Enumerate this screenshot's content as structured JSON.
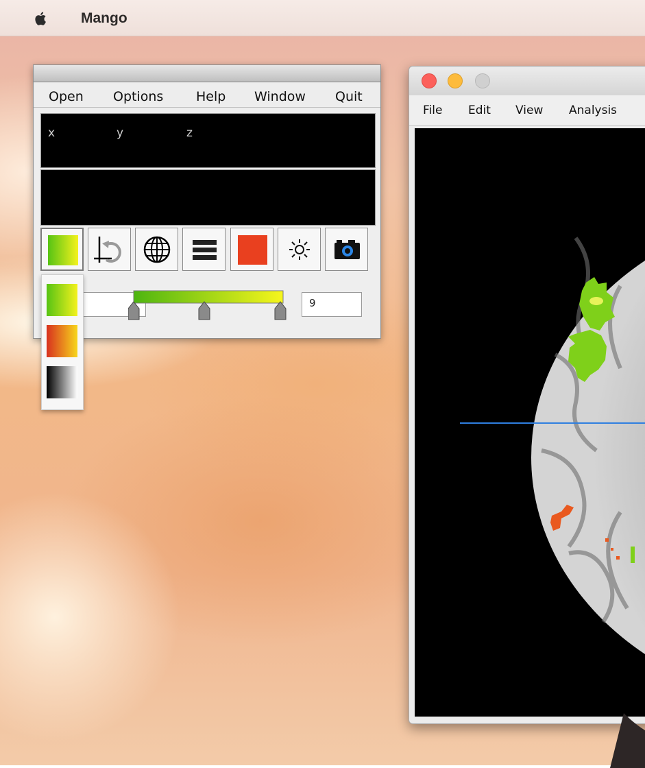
{
  "menubar": {
    "app_name": "Mango"
  },
  "toolbox": {
    "menu": [
      {
        "id": "open",
        "label": "Open"
      },
      {
        "id": "options",
        "label": "Options"
      },
      {
        "id": "help",
        "label": "Help"
      },
      {
        "id": "window",
        "label": "Window"
      },
      {
        "id": "quit",
        "label": "Quit"
      }
    ],
    "coords": {
      "x_label": "x",
      "y_label": "y",
      "z_label": "z"
    },
    "tools": [
      {
        "id": "colormap",
        "icon": "colormap-gradient-icon"
      },
      {
        "id": "origin",
        "icon": "crosshair-rotate-icon"
      },
      {
        "id": "world",
        "icon": "globe-icon"
      },
      {
        "id": "layers",
        "icon": "stack-icon"
      },
      {
        "id": "overlay-color",
        "icon": "red-square-icon"
      },
      {
        "id": "brightness",
        "icon": "sun-icon"
      },
      {
        "id": "screenshot",
        "icon": "camera-icon"
      }
    ],
    "max_value": "9",
    "min_value": ""
  },
  "colormap_options": [
    {
      "id": "green-yellow",
      "icon": "green-yellow-gradient-icon"
    },
    {
      "id": "red-yellow",
      "icon": "red-yellow-gradient-icon"
    },
    {
      "id": "grayscale",
      "icon": "grayscale-gradient-icon"
    }
  ],
  "viewer": {
    "menu": [
      {
        "id": "file",
        "label": "File"
      },
      {
        "id": "edit",
        "label": "Edit"
      },
      {
        "id": "view",
        "label": "View"
      },
      {
        "id": "analysis",
        "label": "Analysis"
      }
    ]
  },
  "colors": {
    "overlay_green": "#7fd01a",
    "overlay_red": "#e9401f",
    "crosshair_blue": "#2f7fe0",
    "close": "#fc605b",
    "minimize": "#fdbb3b",
    "zoom_inactive": "#d0d0d0"
  }
}
